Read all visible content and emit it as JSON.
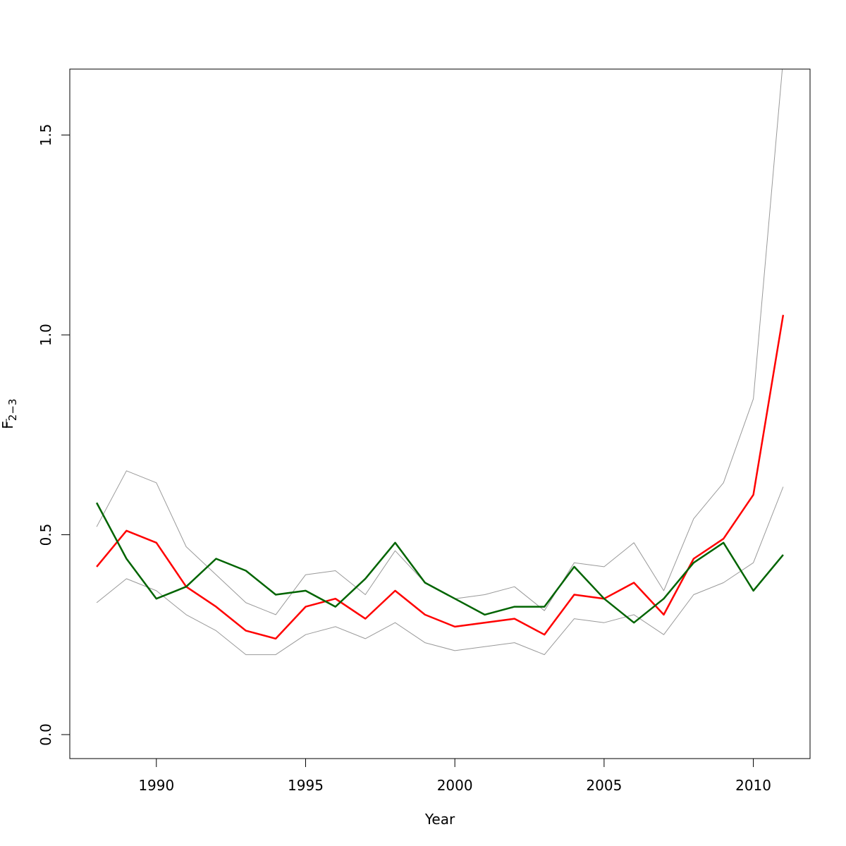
{
  "chart_data": {
    "type": "line",
    "xlabel": "Year",
    "ylabel": "F",
    "ylabel_subscript": "2−3",
    "xlim": [
      1987.1,
      2011.9
    ],
    "ylim": [
      -0.06,
      1.665
    ],
    "x_ticks": [
      1990,
      1995,
      2000,
      2005,
      2010
    ],
    "x_tick_labels": [
      "1990",
      "1995",
      "2000",
      "2005",
      "2010"
    ],
    "y_ticks": [
      0.0,
      0.5,
      1.0,
      1.5
    ],
    "y_tick_labels": [
      "0.0",
      "0.5",
      "1.0",
      "1.5"
    ],
    "grid": false,
    "legend": "none",
    "x": [
      1988,
      1989,
      1990,
      1991,
      1992,
      1993,
      1994,
      1995,
      1996,
      1997,
      1998,
      1999,
      2000,
      2001,
      2002,
      2003,
      2004,
      2005,
      2006,
      2007,
      2008,
      2009,
      2010,
      2011
    ],
    "series": [
      {
        "color": "#999999",
        "width": 1,
        "values": [
          0.52,
          0.66,
          0.63,
          0.47,
          0.4,
          0.33,
          0.3,
          0.4,
          0.41,
          0.35,
          0.46,
          0.38,
          0.34,
          0.35,
          0.37,
          0.31,
          0.43,
          0.42,
          0.48,
          0.36,
          0.54,
          0.63,
          0.84,
          1.69
        ]
      },
      {
        "color": "#999999",
        "width": 1,
        "values": [
          0.33,
          0.39,
          0.36,
          0.3,
          0.26,
          0.2,
          0.2,
          0.25,
          0.27,
          0.24,
          0.28,
          0.23,
          0.21,
          0.22,
          0.23,
          0.2,
          0.29,
          0.28,
          0.3,
          0.25,
          0.35,
          0.38,
          0.43,
          0.62
        ]
      },
      {
        "color": "#ff0000",
        "width": 2.5,
        "values": [
          0.42,
          0.51,
          0.48,
          0.37,
          0.32,
          0.26,
          0.24,
          0.32,
          0.34,
          0.29,
          0.36,
          0.3,
          0.27,
          0.28,
          0.29,
          0.25,
          0.35,
          0.34,
          0.38,
          0.3,
          0.44,
          0.49,
          0.6,
          1.05
        ]
      },
      {
        "color": "#006400",
        "width": 2.5,
        "values": [
          0.58,
          0.44,
          0.34,
          0.37,
          0.44,
          0.41,
          0.35,
          0.36,
          0.32,
          0.39,
          0.48,
          0.38,
          0.34,
          0.3,
          0.32,
          0.32,
          0.42,
          0.34,
          0.28,
          0.34,
          0.43,
          0.48,
          0.36,
          0.45
        ]
      }
    ]
  }
}
